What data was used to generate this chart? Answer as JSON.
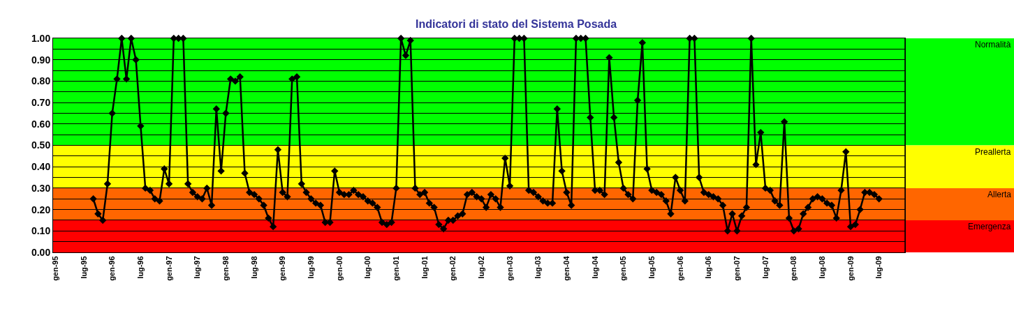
{
  "chart_data": {
    "type": "line",
    "title": "Indicatori di stato del Sistema Posada",
    "categories": [
      "gen-95",
      null,
      null,
      null,
      null,
      null,
      "lug-95",
      null,
      null,
      null,
      null,
      null,
      "gen-96",
      null,
      null,
      null,
      null,
      null,
      "lug-96",
      null,
      null,
      null,
      null,
      null,
      "gen-97",
      null,
      null,
      null,
      null,
      null,
      "lug-97",
      null,
      null,
      null,
      null,
      null,
      "gen-98",
      null,
      null,
      null,
      null,
      null,
      "lug-98",
      null,
      null,
      null,
      null,
      null,
      "gen-99",
      null,
      null,
      null,
      null,
      null,
      "lug-99",
      null,
      null,
      null,
      null,
      null,
      "gen-00",
      null,
      null,
      null,
      null,
      null,
      "lug-00",
      null,
      null,
      null,
      null,
      null,
      "gen-01",
      null,
      null,
      null,
      null,
      null,
      "lug-01",
      null,
      null,
      null,
      null,
      null,
      "gen-02",
      null,
      null,
      null,
      null,
      null,
      "lug-02",
      null,
      null,
      null,
      null,
      null,
      "gen-03",
      null,
      null,
      null,
      null,
      null,
      "lug-03",
      null,
      null,
      null,
      null,
      null,
      "gen-04",
      null,
      null,
      null,
      null,
      null,
      "lug-04",
      null,
      null,
      null,
      null,
      null,
      "gen-05",
      null,
      null,
      null,
      null,
      null,
      "lug-05",
      null,
      null,
      null,
      null,
      null,
      "gen-06",
      null,
      null,
      null,
      null,
      null,
      "lug-06",
      null,
      null,
      null,
      null,
      null,
      "gen-07",
      null,
      null,
      null,
      null,
      null,
      "lug-07",
      null,
      null,
      null,
      null,
      null,
      "gen-08",
      null,
      null,
      null,
      null,
      null,
      "lug-08",
      null,
      null,
      null,
      null,
      null,
      "gen-09",
      null,
      null,
      null,
      null,
      null,
      "lug-09",
      null,
      null,
      null,
      null,
      null
    ],
    "series": [
      {
        "color": "#000000",
        "values": [
          null,
          null,
          null,
          null,
          null,
          null,
          null,
          null,
          0.25,
          0.18,
          0.15,
          0.32,
          0.65,
          0.81,
          1.0,
          0.81,
          1.0,
          0.9,
          0.59,
          0.3,
          0.29,
          0.25,
          0.24,
          0.39,
          0.32,
          1.0,
          1.0,
          1.0,
          0.32,
          0.28,
          0.26,
          0.25,
          0.3,
          0.22,
          0.67,
          0.38,
          0.65,
          0.81,
          0.8,
          0.82,
          0.37,
          0.28,
          0.27,
          0.25,
          0.22,
          0.16,
          0.12,
          0.48,
          0.28,
          0.26,
          0.81,
          0.82,
          0.32,
          0.28,
          0.25,
          0.23,
          0.22,
          0.14,
          0.14,
          0.38,
          0.28,
          0.27,
          0.27,
          0.29,
          0.27,
          0.26,
          0.24,
          0.23,
          0.21,
          0.14,
          0.13,
          0.14,
          0.3,
          1.0,
          0.92,
          0.99,
          0.3,
          0.27,
          0.28,
          0.23,
          0.21,
          0.13,
          0.11,
          0.15,
          0.15,
          0.17,
          0.18,
          0.27,
          0.28,
          0.26,
          0.25,
          0.21,
          0.27,
          0.25,
          0.21,
          0.44,
          0.31,
          1.0,
          1.0,
          1.0,
          0.29,
          0.28,
          0.26,
          0.24,
          0.23,
          0.23,
          0.67,
          0.38,
          0.28,
          0.22,
          1.0,
          1.0,
          1.0,
          0.63,
          0.29,
          0.29,
          0.27,
          0.91,
          0.63,
          0.42,
          0.3,
          0.27,
          0.25,
          0.71,
          0.98,
          0.39,
          0.29,
          0.28,
          0.27,
          0.24,
          0.18,
          0.35,
          0.29,
          0.24,
          1.0,
          1.0,
          0.35,
          0.28,
          0.27,
          0.26,
          0.25,
          0.22,
          0.1,
          0.18,
          0.1,
          0.17,
          0.21,
          1.0,
          0.41,
          0.56,
          0.3,
          0.29,
          0.24,
          0.22,
          0.61,
          0.16,
          0.1,
          0.11,
          0.18,
          0.21,
          0.25,
          0.26,
          0.25,
          0.23,
          0.22,
          0.16,
          0.29,
          0.47,
          0.12,
          0.13,
          0.2,
          0.28,
          0.28,
          0.27,
          0.25,
          null,
          null,
          null,
          null,
          null
        ]
      }
    ],
    "ylim": [
      0,
      1
    ],
    "yticks": [
      {
        "value": 0,
        "label": "0.00"
      },
      {
        "value": 0.05,
        "label": null
      },
      {
        "value": 0.1,
        "label": "0.10"
      },
      {
        "value": 0.15,
        "label": null
      },
      {
        "value": 0.2,
        "label": "0.20"
      },
      {
        "value": 0.25,
        "label": null
      },
      {
        "value": 0.3,
        "label": "0.30"
      },
      {
        "value": 0.35,
        "label": null
      },
      {
        "value": 0.4,
        "label": "0.40"
      },
      {
        "value": 0.45,
        "label": null
      },
      {
        "value": 0.5,
        "label": "0.50"
      },
      {
        "value": 0.55,
        "label": null
      },
      {
        "value": 0.6,
        "label": "0.60"
      },
      {
        "value": 0.65,
        "label": null
      },
      {
        "value": 0.7,
        "label": "0.70"
      },
      {
        "value": 0.75,
        "label": null
      },
      {
        "value": 0.8,
        "label": "0.80"
      },
      {
        "value": 0.85,
        "label": null
      },
      {
        "value": 0.9,
        "label": "0.90"
      },
      {
        "value": 0.95,
        "label": null
      },
      {
        "value": 1,
        "label": "1.00"
      }
    ],
    "bands": [
      {
        "axis": "y",
        "from": 0.5,
        "to": 1,
        "label": "Normalità",
        "color": "#00ff00"
      },
      {
        "axis": "y",
        "from": 0.3,
        "to": 0.5,
        "label": "Preallerta",
        "color": "#ffff00"
      },
      {
        "axis": "y",
        "from": 0.15,
        "to": 0.3,
        "label": "Allerta",
        "color": "#ff6600"
      },
      {
        "axis": "y",
        "from": 0,
        "to": 0.15,
        "label": "Emergenza",
        "color": "#ff0000"
      }
    ],
    "grid": "y",
    "marker": "diamond",
    "line_style": "solid"
  }
}
